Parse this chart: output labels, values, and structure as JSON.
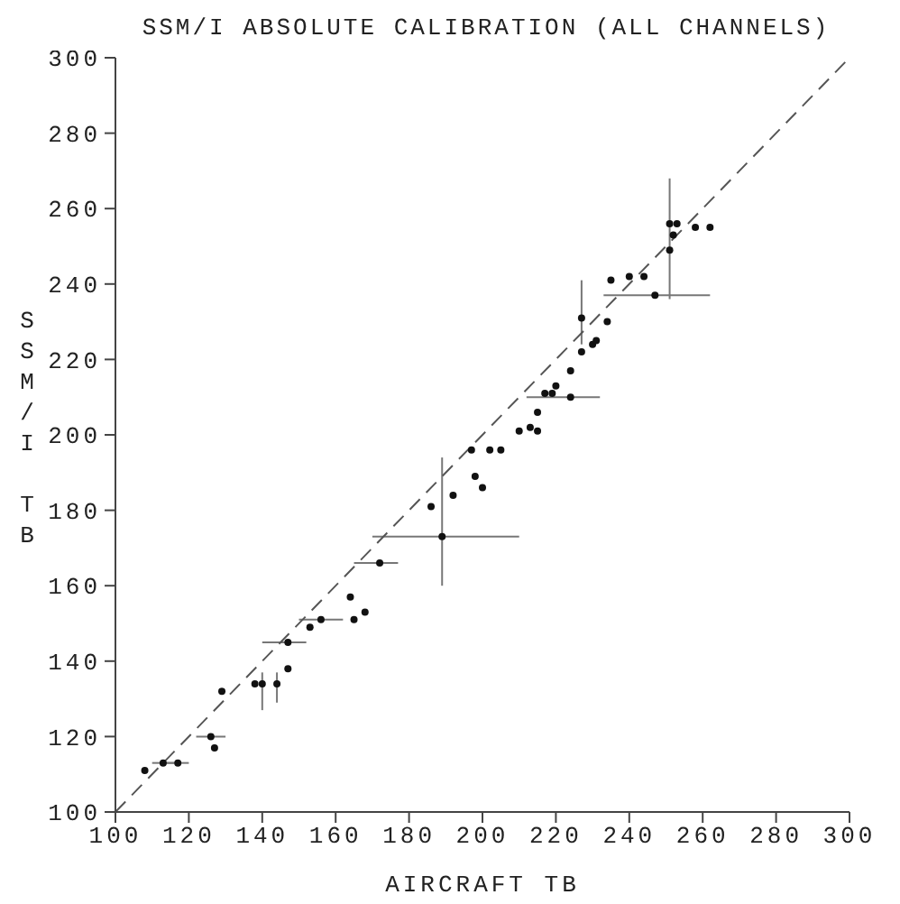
{
  "chart_data": {
    "type": "scatter",
    "title": "SSM/I ABSOLUTE CALIBRATION (ALL CHANNELS)",
    "xlabel": "AIRCRAFT TB",
    "ylabel": "SSM/I TB",
    "xlim": [
      100,
      300
    ],
    "ylim": [
      100,
      300
    ],
    "xticks": [
      100,
      120,
      140,
      160,
      180,
      200,
      220,
      240,
      260,
      280,
      300
    ],
    "yticks": [
      100,
      120,
      140,
      160,
      180,
      200,
      220,
      240,
      260,
      280,
      300
    ],
    "marker": "circle",
    "series": [
      {
        "color": "#111111",
        "x": [
          108,
          113,
          117,
          126,
          127,
          129,
          138,
          140,
          144,
          147,
          147,
          153,
          156,
          164,
          165,
          168,
          172,
          189,
          186,
          192,
          198,
          200,
          197,
          202,
          205,
          210,
          213,
          215,
          215,
          217,
          219,
          224,
          220,
          224,
          227,
          230,
          231,
          227,
          234,
          235,
          240,
          244,
          247,
          251,
          252,
          251,
          253,
          258,
          262
        ],
        "values": [
          111,
          113,
          113,
          120,
          117,
          132,
          134,
          134,
          134,
          138,
          145,
          149,
          151,
          157,
          151,
          153,
          166,
          173,
          181,
          184,
          189,
          186,
          196,
          196,
          196,
          201,
          202,
          201,
          206,
          211,
          211,
          210,
          213,
          217,
          222,
          224,
          225,
          231,
          230,
          241,
          242,
          242,
          237,
          249,
          253,
          256,
          256,
          255,
          255
        ],
        "errors": [
          null,
          null,
          null,
          null,
          null,
          null,
          null,
          [
            127,
            137
          ],
          [
            129,
            137
          ],
          null,
          null,
          null,
          null,
          null,
          null,
          null,
          null,
          [
            160,
            194
          ],
          null,
          null,
          null,
          null,
          null,
          null,
          null,
          null,
          null,
          null,
          null,
          null,
          null,
          null,
          null,
          null,
          null,
          null,
          null,
          [
            224,
            241
          ],
          null,
          null,
          null,
          null,
          null,
          [
            236,
            268
          ],
          null,
          null,
          null,
          null,
          null
        ],
        "xerrors": [
          null,
          3,
          3,
          4,
          null,
          null,
          null,
          null,
          null,
          null,
          [
            140,
            152
          ],
          null,
          [
            150,
            162
          ],
          null,
          null,
          null,
          [
            165,
            177
          ],
          [
            170,
            210
          ],
          null,
          null,
          null,
          null,
          null,
          null,
          null,
          null,
          null,
          null,
          null,
          null,
          null,
          [
            212,
            232
          ],
          null,
          null,
          null,
          null,
          null,
          null,
          null,
          null,
          null,
          null,
          [
            233,
            262
          ],
          null,
          null,
          null,
          null,
          null,
          null
        ]
      },
      {
        "type": "line",
        "color": "#555555",
        "line_style": "dashed",
        "marker": "none",
        "x": [
          100,
          300
        ],
        "values": [
          100,
          300
        ]
      }
    ]
  }
}
